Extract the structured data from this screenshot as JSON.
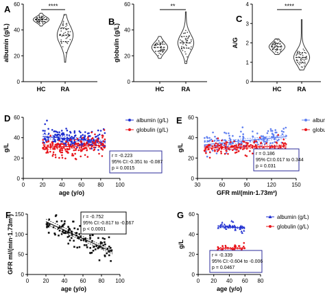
{
  "chart_data": [
    {
      "panel": "A",
      "type": "violin",
      "categories": [
        "HC",
        "RA"
      ],
      "ylabel": "albumin (g/L)",
      "ylim": [
        0,
        60
      ],
      "yticks": [
        0,
        20,
        40,
        60
      ],
      "significance": "****",
      "color": "#333333",
      "distributions": [
        {
          "category": "HC",
          "min": 43,
          "q1": 46.5,
          "median": 48,
          "q3": 49.5,
          "max": 53
        },
        {
          "category": "RA",
          "min": 15,
          "q1": 31,
          "median": 36,
          "q3": 41,
          "max": 52
        }
      ]
    },
    {
      "panel": "B",
      "type": "violin",
      "categories": [
        "HC",
        "RA"
      ],
      "ylabel": "globulin (g/L)",
      "ylim": [
        0,
        60
      ],
      "yticks": [
        0,
        20,
        40,
        60
      ],
      "significance": "**",
      "color": "#333333",
      "distributions": [
        {
          "category": "HC",
          "min": 18,
          "q1": 23.5,
          "median": 26.5,
          "q3": 29,
          "max": 35
        },
        {
          "category": "RA",
          "min": 14,
          "q1": 26,
          "median": 30,
          "q3": 35,
          "max": 54
        }
      ]
    },
    {
      "panel": "C",
      "type": "violin",
      "categories": [
        "HC",
        "RA"
      ],
      "ylabel": "A/G",
      "ylim": [
        0,
        4
      ],
      "yticks": [
        0,
        1,
        2,
        3,
        4
      ],
      "significance": "****",
      "color": "#333333",
      "distributions": [
        {
          "category": "HC",
          "min": 1.4,
          "q1": 1.65,
          "median": 1.8,
          "q3": 1.95,
          "max": 2.2
        },
        {
          "category": "RA",
          "min": 0.6,
          "q1": 1.0,
          "median": 1.25,
          "q3": 1.5,
          "max": 3.2
        }
      ]
    },
    {
      "panel": "D",
      "type": "scatter",
      "xlabel": "age (y/o)",
      "ylabel": "g/L",
      "xlim": [
        0,
        100
      ],
      "ylim": [
        0,
        60
      ],
      "xticks": [
        0,
        20,
        40,
        60,
        80,
        100
      ],
      "yticks": [
        0,
        20,
        40,
        60
      ],
      "legend_position": "top-right",
      "series": [
        {
          "name": "albumin (g/L)",
          "color": "#1f2fd0",
          "marker": "circle",
          "n": 180,
          "x_range": [
            20,
            85
          ],
          "fit": {
            "slope": -0.085,
            "intercept": 43.0
          },
          "spread": 4.5
        },
        {
          "name": "globulin (g/L)",
          "color": "#e8151b",
          "marker": "circle",
          "n": 180,
          "x_range": [
            20,
            85
          ],
          "fit": {
            "slope": 0.03,
            "intercept": 30.0
          },
          "spread": 5
        }
      ],
      "stats": {
        "r": "r = -0.223",
        "ci": "95% CI:-0.351 to -0.087",
        "p": "p = 0.0015"
      }
    },
    {
      "panel": "E",
      "type": "scatter",
      "xlabel": "GFR ml/(min·1.73m²)",
      "ylabel": "g/L",
      "xlim": [
        30,
        150
      ],
      "ylim": [
        0,
        60
      ],
      "xticks": [
        30,
        60,
        90,
        120,
        150
      ],
      "yticks": [
        0,
        20,
        40,
        60
      ],
      "legend_position": "top-right",
      "series": [
        {
          "name": "albumin (g/L)",
          "color": "#5f7ff0",
          "marker": "circle",
          "n": 150,
          "x_range": [
            38,
            138
          ],
          "fit": {
            "slope": 0.08,
            "intercept": 30.0
          },
          "spread": 5
        },
        {
          "name": "globulin (g/L)",
          "color": "#e8151b",
          "marker": "circle",
          "n": 150,
          "x_range": [
            38,
            138
          ],
          "fit": {
            "slope": 0.02,
            "intercept": 29.0
          },
          "spread": 4
        }
      ],
      "stats": {
        "r": "r = 0.186",
        "ci": "95% CI:0.017 to 0.344",
        "p": "p = 0.031"
      }
    },
    {
      "panel": "F",
      "type": "scatter",
      "xlabel": "age (y/o)",
      "ylabel": "GFR ml/(min·1.73m²)",
      "xlim": [
        0,
        100
      ],
      "ylim": [
        0,
        150
      ],
      "xticks": [
        0,
        20,
        40,
        60,
        80,
        100
      ],
      "yticks": [
        0,
        50,
        100,
        150
      ],
      "series": [
        {
          "name": "",
          "color": "#111111",
          "marker": "square",
          "n": 120,
          "x_range": [
            20,
            92
          ],
          "fit": {
            "slope": -1.05,
            "intercept": 152
          },
          "spread": 14
        }
      ],
      "stats": {
        "r": "r = -0.752",
        "ci": "95% CI:-0.817 to -0.667",
        "p": "p < 0.0001"
      }
    },
    {
      "panel": "G",
      "type": "scatter",
      "xlabel": "age (y/o)",
      "ylabel": "g/L",
      "xlim": [
        0,
        80
      ],
      "ylim": [
        0,
        60
      ],
      "xticks": [
        0,
        20,
        40,
        60,
        80
      ],
      "yticks": [
        0,
        20,
        40,
        60
      ],
      "legend_position": "top-right",
      "series": [
        {
          "name": "albumin (g/L)",
          "color": "#1f2fd0",
          "marker": "triangle",
          "n": 35,
          "x_range": [
            25,
            60
          ],
          "fit": {
            "slope": -0.05,
            "intercept": 49.0
          },
          "spread": 2.2
        },
        {
          "name": "globulin (g/L)",
          "color": "#e8151b",
          "marker": "circle",
          "n": 35,
          "x_range": [
            25,
            60
          ],
          "fit": {
            "slope": 0.005,
            "intercept": 25.8
          },
          "spread": 2.2
        }
      ],
      "stats": {
        "r": "r = -0.339",
        "ci": "95% CI:-0.604 to -0.006",
        "p": "p = 0.0467"
      }
    }
  ]
}
